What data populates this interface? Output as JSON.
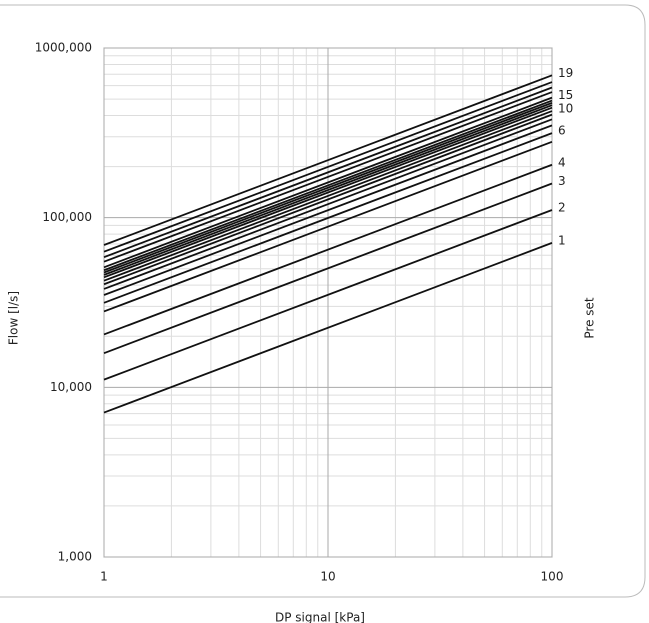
{
  "chart_data": {
    "type": "line",
    "xlabel": "DP signal [kPa]",
    "ylabel": "Flow [l/s]",
    "y2label": "Pre set",
    "xscale": "log",
    "yscale": "log",
    "grid": true,
    "color": "#111111",
    "x": [
      1,
      100
    ],
    "xlim": [
      1,
      100
    ],
    "xticks": [
      1,
      10,
      100
    ],
    "ylim": [
      1000,
      1000000
    ],
    "yticks": [
      {
        "value": 1000,
        "label": "1,000"
      },
      {
        "value": 10000,
        "label": "10,000"
      },
      {
        "value": 100000,
        "label": "100,000"
      },
      {
        "value": 1000000,
        "label": "1000,000"
      }
    ],
    "series": [
      {
        "name": "1",
        "values": [
          7100,
          71000
        ]
      },
      {
        "name": "2",
        "values": [
          11100,
          111000
        ]
      },
      {
        "name": "3",
        "values": [
          15900,
          159000
        ]
      },
      {
        "name": "4",
        "values": [
          20500,
          205000
        ]
      },
      {
        "values": [
          28000,
          280000
        ]
      },
      {
        "name": "6",
        "values": [
          31500,
          315000
        ]
      },
      {
        "values": [
          35000,
          350000
        ]
      },
      {
        "values": [
          38000,
          380000
        ]
      },
      {
        "values": [
          40500,
          405000
        ]
      },
      {
        "name": "10",
        "values": [
          42500,
          425000
        ]
      },
      {
        "values": [
          44500,
          445000
        ]
      },
      {
        "values": [
          46000,
          460000
        ]
      },
      {
        "values": [
          47500,
          475000
        ]
      },
      {
        "values": [
          49000,
          490000
        ]
      },
      {
        "name": "15",
        "values": [
          51000,
          510000
        ]
      },
      {
        "values": [
          55000,
          550000
        ]
      },
      {
        "values": [
          58500,
          585000
        ]
      },
      {
        "values": [
          63000,
          630000
        ]
      },
      {
        "name": "19",
        "values": [
          69000,
          690000
        ]
      }
    ]
  }
}
